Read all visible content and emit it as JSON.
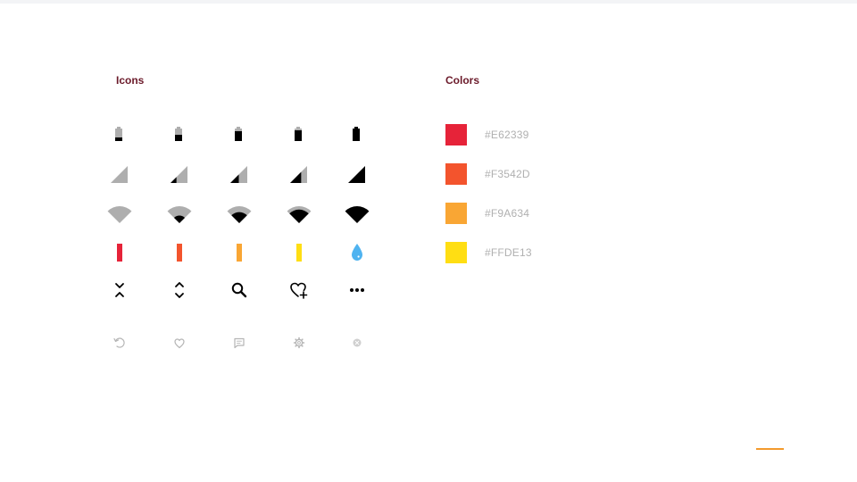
{
  "icons_section": {
    "title": "Icons",
    "rows": [
      {
        "kind": "battery",
        "icons": [
          "battery-25-icon",
          "battery-50-icon",
          "battery-75-icon",
          "battery-85-icon",
          "battery-full-icon"
        ],
        "levels": [
          0.25,
          0.5,
          0.75,
          0.85,
          1.0
        ]
      },
      {
        "kind": "signal",
        "icons": [
          "signal-0-icon",
          "signal-1-icon",
          "signal-2-icon",
          "signal-3-icon",
          "signal-full-icon"
        ],
        "levels": [
          0,
          0.35,
          0.5,
          0.65,
          1.0
        ]
      },
      {
        "kind": "wifi",
        "icons": [
          "wifi-0-icon",
          "wifi-1-icon",
          "wifi-2-icon",
          "wifi-3-icon",
          "wifi-full-icon"
        ],
        "levels": [
          0,
          0.45,
          0.65,
          0.8,
          1.0
        ]
      },
      {
        "kind": "level",
        "icons": [
          "level-red-icon",
          "level-orange-icon",
          "level-amber-icon",
          "level-yellow-icon",
          "water-drop-icon"
        ],
        "colors": [
          "#E62339",
          "#F3542D",
          "#F9A634",
          "#FFDE13",
          "#4FB3F0"
        ]
      },
      {
        "kind": "action",
        "icons": [
          "collapse-icon",
          "expand-icon",
          "search-icon",
          "heart-add-icon",
          "more-icon"
        ]
      },
      {
        "kind": "small",
        "icons": [
          "refresh-icon",
          "heart-outline-icon",
          "comment-icon",
          "gear-icon",
          "close-circle-icon"
        ]
      }
    ]
  },
  "colors_section": {
    "title": "Colors",
    "swatches": [
      {
        "hex": "#E62339",
        "label": "#E62339"
      },
      {
        "hex": "#F3542D",
        "label": "#F3542D"
      },
      {
        "hex": "#F9A634",
        "label": "#F9A634"
      },
      {
        "hex": "#FFDE13",
        "label": "#FFDE13"
      }
    ]
  },
  "accent_color": "#F39A2C"
}
